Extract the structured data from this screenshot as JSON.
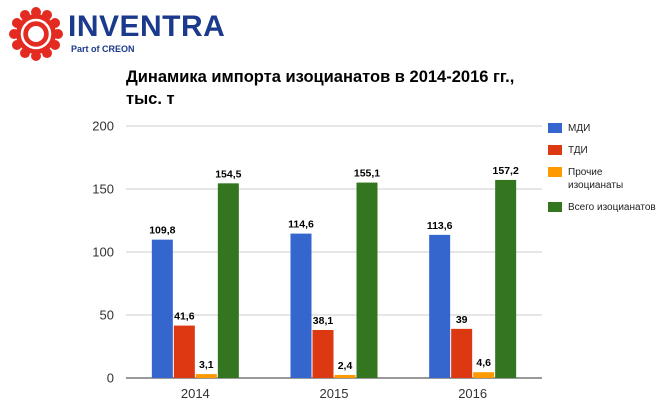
{
  "brand": {
    "name": "INVENTRA",
    "tagline": "Part of CREON",
    "logo_color": "#e32b22",
    "text_color": "#1b3a8c"
  },
  "chart_data": {
    "type": "bar",
    "title": "Динамика импорта изоцианатов в 2014-2016 гг., тыс. т",
    "xlabel": "",
    "ylabel": "",
    "categories": [
      "2014",
      "2015",
      "2016"
    ],
    "ylim": [
      0,
      200
    ],
    "yticks": [
      0,
      50,
      100,
      150,
      200
    ],
    "grid": "horizontal",
    "legend_position": "right",
    "series": [
      {
        "name": "МДИ",
        "color": "#3466cd",
        "values": [
          109.8,
          114.6,
          113.6
        ],
        "labels": [
          "109,8",
          "114,6",
          "113,6"
        ]
      },
      {
        "name": "ТДИ",
        "color": "#dc3912",
        "values": [
          41.6,
          38.1,
          39
        ],
        "labels": [
          "41,6",
          "38,1",
          "39"
        ]
      },
      {
        "name": "Прочие изоцианаты",
        "color": "#ff9900",
        "values": [
          3.1,
          2.4,
          4.6
        ],
        "labels": [
          "3,1",
          "2,4",
          "4,6"
        ]
      },
      {
        "name": "Всего изоцианатов",
        "color": "#34761f",
        "values": [
          154.5,
          155.1,
          157.2
        ],
        "labels": [
          "154,5",
          "155,1",
          "157,2"
        ]
      }
    ]
  }
}
